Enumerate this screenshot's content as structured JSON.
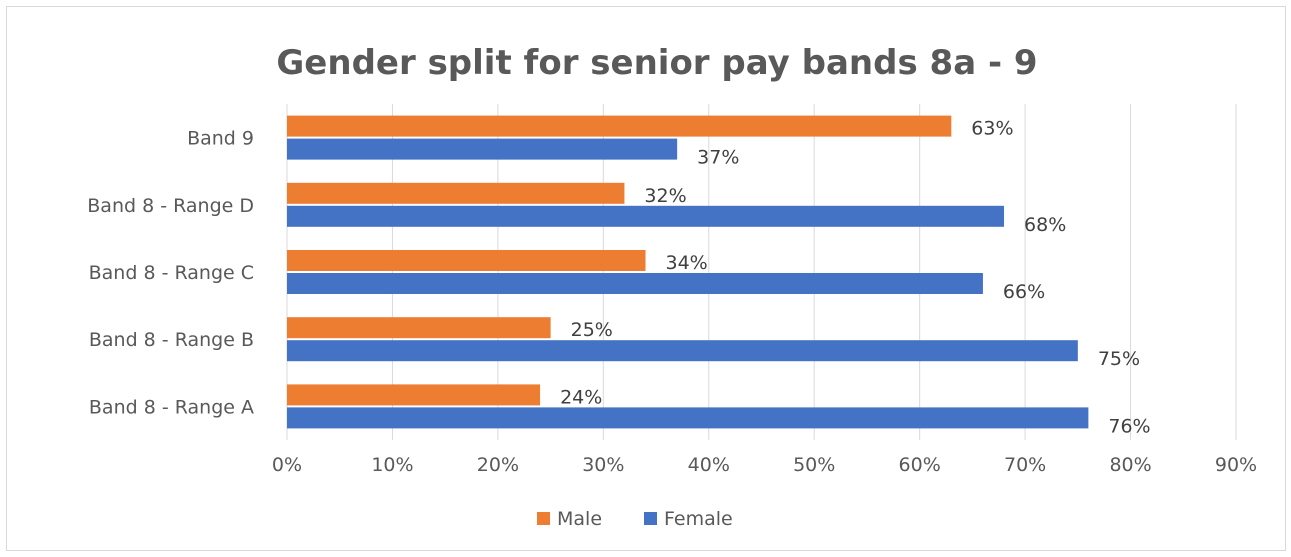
{
  "chart_data": {
    "type": "bar",
    "orientation": "horizontal",
    "title": "Gender split for senior pay bands 8a - 9",
    "categories": [
      "Band 9",
      "Band 8 - Range D",
      "Band 8 - Range C",
      "Band 8 - Range B",
      "Band 8 - Range A"
    ],
    "series": [
      {
        "name": "Male",
        "color": "#ED7D31",
        "values": [
          63,
          32,
          34,
          25,
          24
        ],
        "labels": [
          "63%",
          "32%",
          "34%",
          "25%",
          "24%"
        ]
      },
      {
        "name": "Female",
        "color": "#4472C4",
        "values": [
          37,
          68,
          66,
          75,
          76
        ],
        "labels": [
          "37%",
          "68%",
          "66%",
          "75%",
          "76%"
        ]
      }
    ],
    "xlim": [
      0,
      90
    ],
    "xticks": [
      "0%",
      "10%",
      "20%",
      "30%",
      "40%",
      "50%",
      "60%",
      "70%",
      "80%",
      "90%"
    ],
    "xlabel": "",
    "ylabel": "",
    "grid": true,
    "legend_position": "bottom"
  }
}
